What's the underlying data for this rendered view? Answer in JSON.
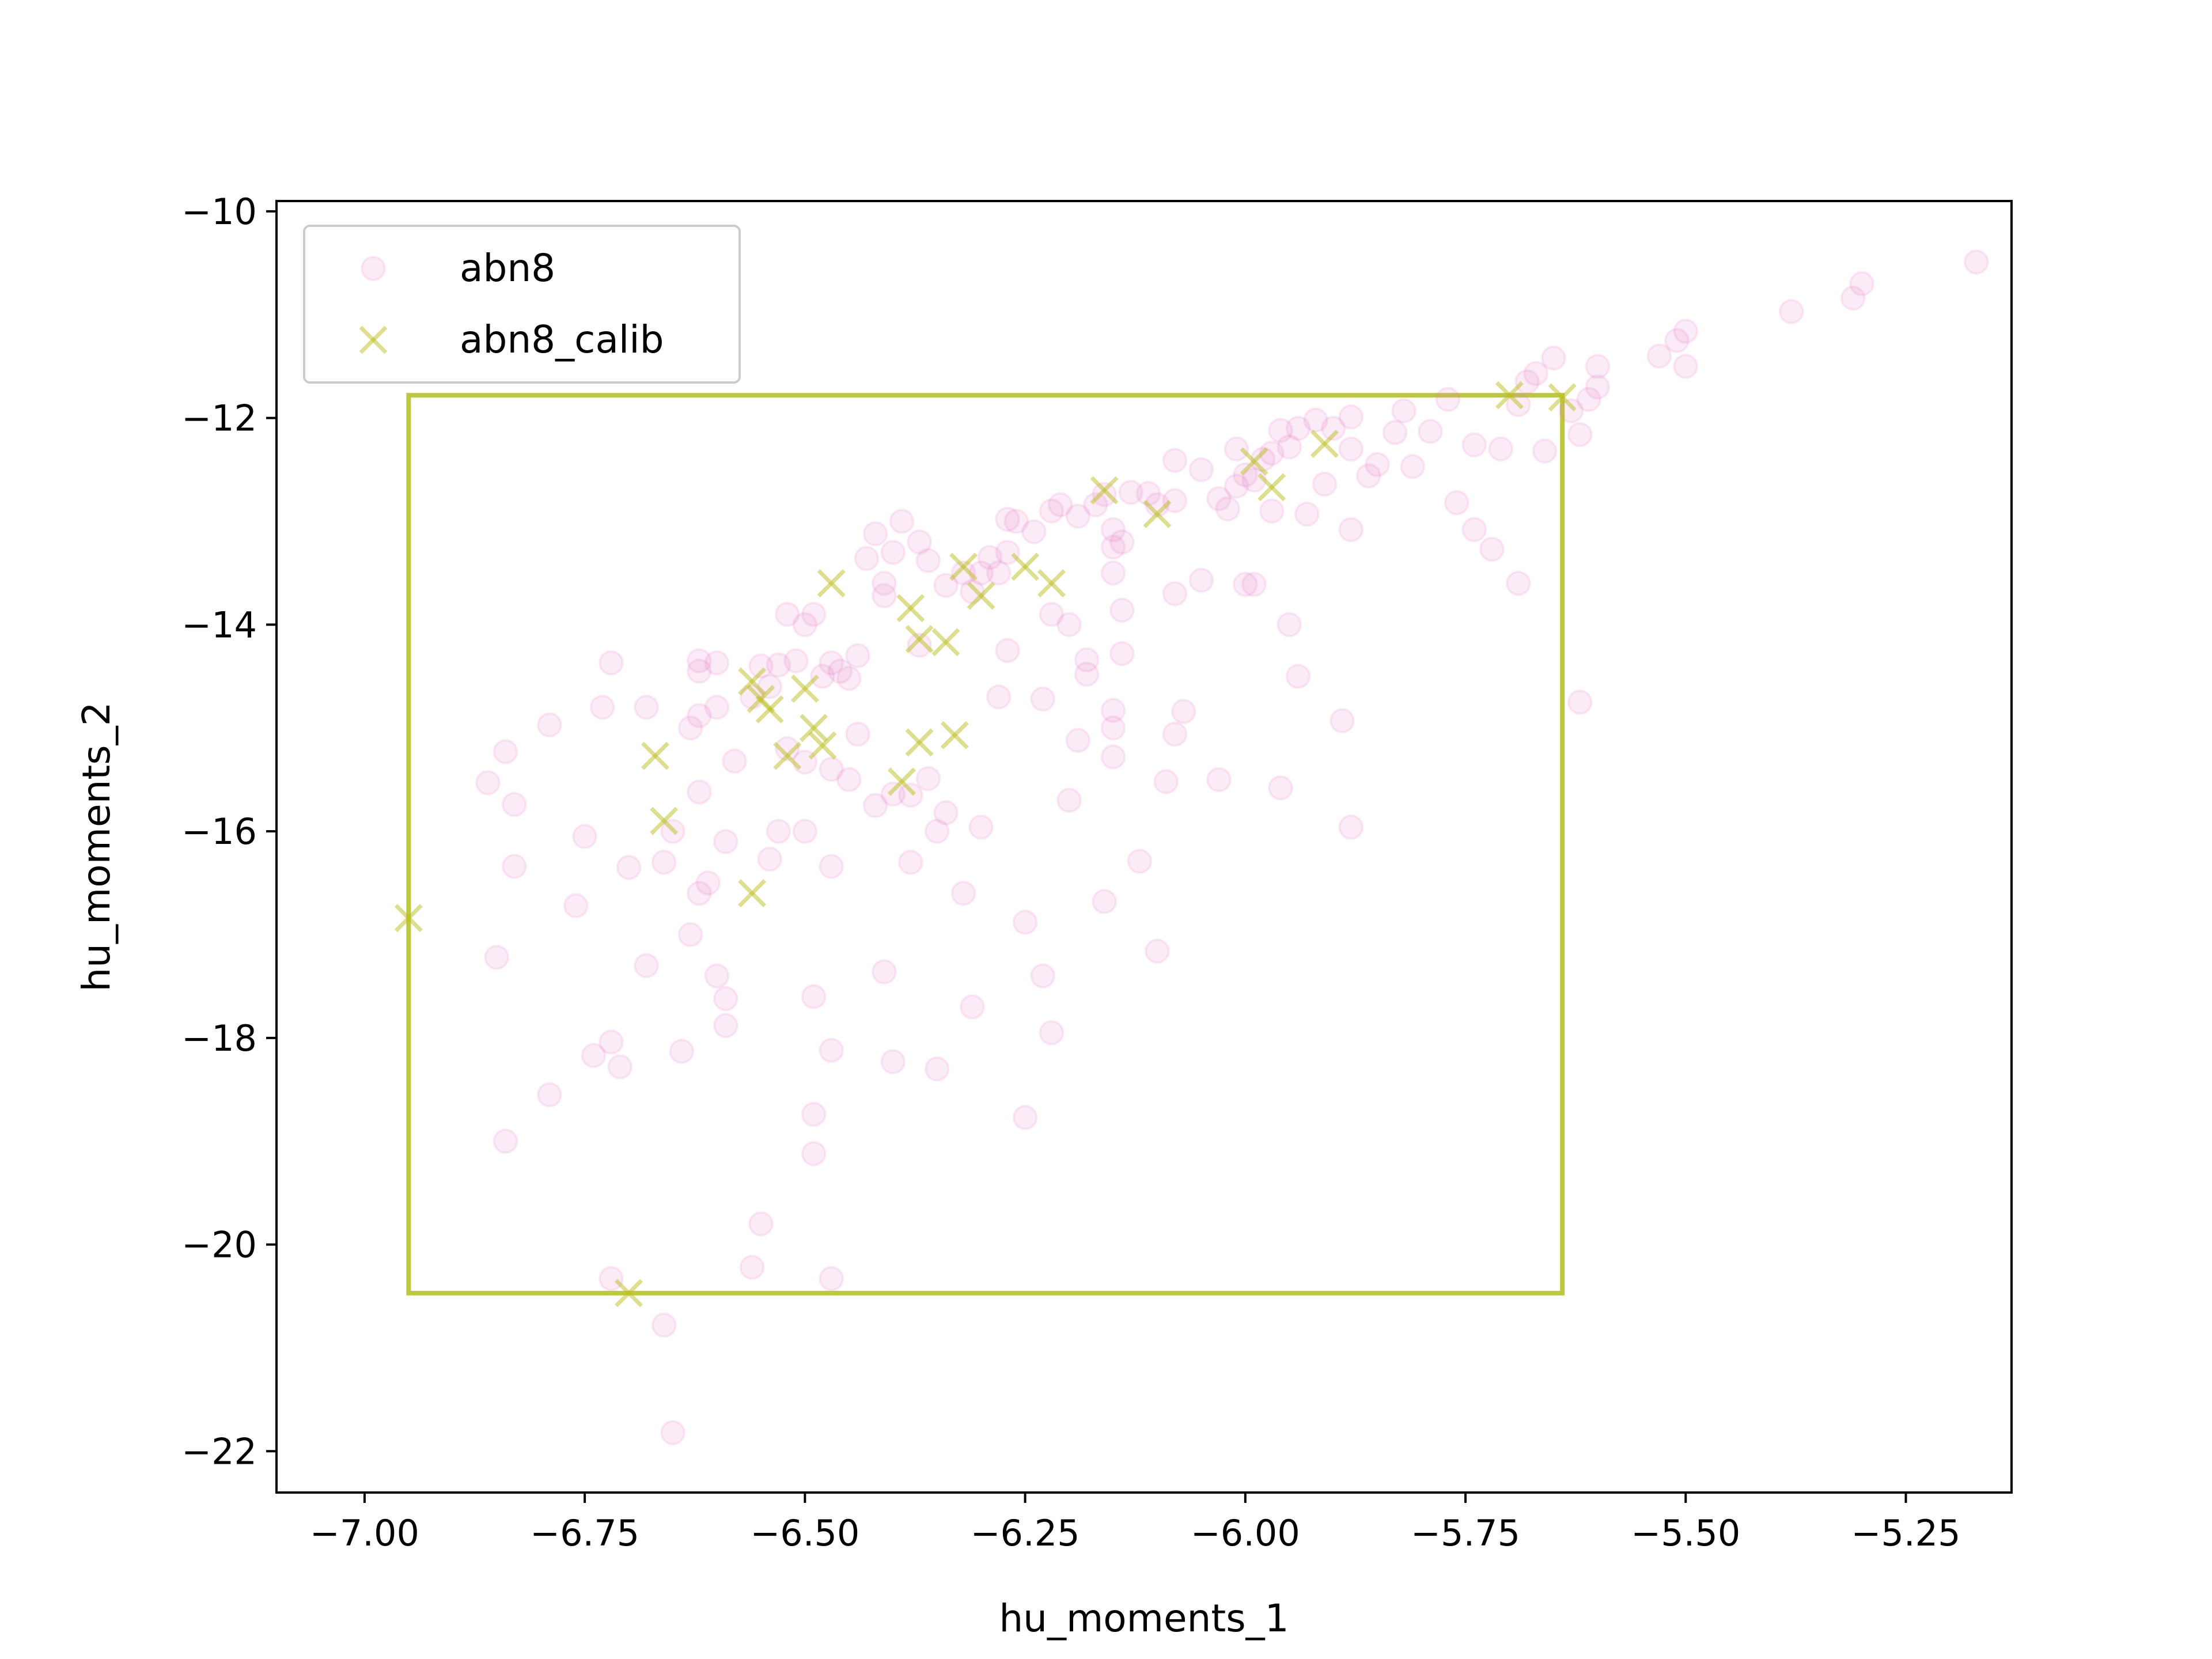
{
  "chart_data": {
    "type": "scatter",
    "xlabel": "hu_moments_1",
    "ylabel": "hu_moments_2",
    "xlim": [
      -7.1,
      -5.13
    ],
    "ylim": [
      -22.4,
      -9.9
    ],
    "x_ticks": [
      -7.0,
      -6.75,
      -6.5,
      -6.25,
      -6.0,
      -5.75,
      -5.5,
      -5.25
    ],
    "y_ticks": [
      -10,
      -12,
      -14,
      -16,
      -18,
      -20,
      -22
    ],
    "grid": false,
    "legend_position": "top-left",
    "calib_box": {
      "x0": -6.95,
      "x1": -5.64,
      "y0": -20.47,
      "y1": -11.78,
      "color": "#bcc840"
    },
    "series": [
      {
        "name": "abn8",
        "marker": "circle",
        "color": "#e377c2",
        "opacity": 0.15,
        "points": [
          [
            -5.17,
            -10.49
          ],
          [
            -5.3,
            -10.7
          ],
          [
            -5.31,
            -10.84
          ],
          [
            -5.38,
            -10.97
          ],
          [
            -5.5,
            -11.16
          ],
          [
            -5.51,
            -11.25
          ],
          [
            -5.53,
            -11.4
          ],
          [
            -5.5,
            -11.5
          ],
          [
            -5.6,
            -11.5
          ],
          [
            -5.6,
            -11.7
          ],
          [
            -5.61,
            -11.82
          ],
          [
            -5.65,
            -11.42
          ],
          [
            -5.67,
            -11.57
          ],
          [
            -5.68,
            -11.65
          ],
          [
            -5.69,
            -11.87
          ],
          [
            -5.63,
            -11.93
          ],
          [
            -5.62,
            -12.16
          ],
          [
            -5.66,
            -12.32
          ],
          [
            -5.71,
            -12.3
          ],
          [
            -5.74,
            -12.26
          ],
          [
            -5.77,
            -11.82
          ],
          [
            -5.79,
            -12.13
          ],
          [
            -5.82,
            -11.93
          ],
          [
            -5.83,
            -12.14
          ],
          [
            -5.85,
            -12.45
          ],
          [
            -5.86,
            -12.56
          ],
          [
            -5.88,
            -11.99
          ],
          [
            -5.88,
            -12.3
          ],
          [
            -5.88,
            -13.08
          ],
          [
            -5.9,
            -12.1
          ],
          [
            -5.92,
            -12.02
          ],
          [
            -5.91,
            -12.64
          ],
          [
            -5.93,
            -12.93
          ],
          [
            -5.94,
            -12.1
          ],
          [
            -5.95,
            -12.28
          ],
          [
            -5.96,
            -12.12
          ],
          [
            -5.97,
            -12.34
          ],
          [
            -5.97,
            -12.9
          ],
          [
            -5.98,
            -12.4
          ],
          [
            -5.99,
            -12.6
          ],
          [
            -6.0,
            -12.55
          ],
          [
            -5.99,
            -13.61
          ],
          [
            -6.0,
            -13.61
          ],
          [
            -6.01,
            -12.3
          ],
          [
            -6.01,
            -12.66
          ],
          [
            -6.02,
            -12.88
          ],
          [
            -6.03,
            -12.78
          ],
          [
            -6.05,
            -12.5
          ],
          [
            -6.05,
            -13.57
          ],
          [
            -6.08,
            -12.41
          ],
          [
            -6.08,
            -12.8
          ],
          [
            -6.08,
            -13.7
          ],
          [
            -6.1,
            -12.84
          ],
          [
            -6.11,
            -12.73
          ],
          [
            -6.13,
            -12.72
          ],
          [
            -6.14,
            -13.2
          ],
          [
            -6.14,
            -13.86
          ],
          [
            -6.15,
            -13.08
          ],
          [
            -6.15,
            -13.25
          ],
          [
            -6.15,
            -13.5
          ],
          [
            -6.16,
            -12.74
          ],
          [
            -6.17,
            -12.84
          ],
          [
            -6.19,
            -12.95
          ],
          [
            -6.21,
            -12.84
          ],
          [
            -6.22,
            -12.9
          ],
          [
            -6.24,
            -13.1
          ],
          [
            -6.26,
            -13.0
          ],
          [
            -6.27,
            -13.3
          ],
          [
            -6.27,
            -12.98
          ],
          [
            -6.28,
            -13.5
          ],
          [
            -6.29,
            -13.35
          ],
          [
            -6.3,
            -13.5
          ],
          [
            -6.31,
            -13.68
          ],
          [
            -6.32,
            -13.5
          ],
          [
            -6.34,
            -13.62
          ],
          [
            -6.36,
            -13.38
          ],
          [
            -6.37,
            -13.2
          ],
          [
            -6.39,
            -13.0
          ],
          [
            -6.4,
            -13.3
          ],
          [
            -6.41,
            -13.6
          ],
          [
            -6.41,
            -13.72
          ],
          [
            -6.42,
            -13.12
          ],
          [
            -6.43,
            -13.36
          ],
          [
            -6.44,
            -14.3
          ],
          [
            -6.45,
            -14.52
          ],
          [
            -6.46,
            -14.45
          ],
          [
            -6.47,
            -14.37
          ],
          [
            -6.48,
            -14.5
          ],
          [
            -6.49,
            -13.9
          ],
          [
            -6.5,
            -14.0
          ],
          [
            -6.51,
            -14.35
          ],
          [
            -6.52,
            -13.9
          ],
          [
            -6.53,
            -14.39
          ],
          [
            -6.54,
            -14.6
          ],
          [
            -6.55,
            -14.4
          ],
          [
            -6.56,
            -14.7
          ],
          [
            -6.6,
            -14.8
          ],
          [
            -6.62,
            -14.35
          ],
          [
            -6.62,
            -14.45
          ],
          [
            -6.62,
            -14.88
          ],
          [
            -6.63,
            -15.0
          ],
          [
            -6.6,
            -14.37
          ],
          [
            -6.68,
            -14.8
          ],
          [
            -6.72,
            -14.37
          ],
          [
            -6.73,
            -14.8
          ],
          [
            -6.79,
            -14.97
          ],
          [
            -6.84,
            -15.23
          ],
          [
            -6.86,
            -15.53
          ],
          [
            -6.83,
            -15.74
          ],
          [
            -6.75,
            -16.05
          ],
          [
            -6.7,
            -16.35
          ],
          [
            -6.66,
            -16.3
          ],
          [
            -6.61,
            -16.5
          ],
          [
            -6.59,
            -16.1
          ],
          [
            -6.54,
            -16.27
          ],
          [
            -6.5,
            -16.0
          ],
          [
            -6.47,
            -16.34
          ],
          [
            -6.42,
            -15.75
          ],
          [
            -6.38,
            -15.65
          ],
          [
            -6.36,
            -15.49
          ],
          [
            -6.34,
            -15.82
          ],
          [
            -6.32,
            -16.6
          ],
          [
            -6.3,
            -15.96
          ],
          [
            -6.25,
            -16.88
          ],
          [
            -6.23,
            -17.4
          ],
          [
            -6.35,
            -16.0
          ],
          [
            -6.45,
            -15.5
          ],
          [
            -6.5,
            -15.33
          ],
          [
            -6.47,
            -15.4
          ],
          [
            -6.44,
            -15.06
          ],
          [
            -6.4,
            -15.64
          ],
          [
            -6.58,
            -15.32
          ],
          [
            -6.62,
            -15.62
          ],
          [
            -6.65,
            -16.0
          ],
          [
            -6.62,
            -16.6
          ],
          [
            -6.63,
            -17.0
          ],
          [
            -6.68,
            -17.3
          ],
          [
            -6.76,
            -16.72
          ],
          [
            -6.83,
            -16.34
          ],
          [
            -6.85,
            -17.22
          ],
          [
            -6.72,
            -18.04
          ],
          [
            -6.71,
            -18.28
          ],
          [
            -6.64,
            -18.13
          ],
          [
            -6.74,
            -18.17
          ],
          [
            -6.79,
            -18.55
          ],
          [
            -6.84,
            -19.0
          ],
          [
            -6.59,
            -17.62
          ],
          [
            -6.59,
            -17.88
          ],
          [
            -6.49,
            -17.6
          ],
          [
            -6.47,
            -18.12
          ],
          [
            -6.49,
            -18.74
          ],
          [
            -6.41,
            -17.36
          ],
          [
            -6.4,
            -18.23
          ],
          [
            -6.35,
            -18.3
          ],
          [
            -6.31,
            -17.7
          ],
          [
            -6.25,
            -18.77
          ],
          [
            -6.22,
            -17.95
          ],
          [
            -6.55,
            -19.8
          ],
          [
            -6.56,
            -20.22
          ],
          [
            -6.47,
            -20.33
          ],
          [
            -6.49,
            -19.12
          ],
          [
            -6.72,
            -20.33
          ],
          [
            -6.66,
            -20.78
          ],
          [
            -6.65,
            -21.82
          ],
          [
            -6.2,
            -15.7
          ],
          [
            -6.19,
            -15.12
          ],
          [
            -6.18,
            -14.48
          ],
          [
            -6.18,
            -14.34
          ],
          [
            -6.15,
            -14.83
          ],
          [
            -6.15,
            -15.28
          ],
          [
            -6.14,
            -14.28
          ],
          [
            -6.12,
            -16.29
          ],
          [
            -6.1,
            -17.16
          ],
          [
            -6.09,
            -15.52
          ],
          [
            -6.07,
            -14.84
          ],
          [
            -6.08,
            -15.06
          ],
          [
            -6.03,
            -15.5
          ],
          [
            -6.16,
            -16.68
          ],
          [
            -6.15,
            -15.0
          ],
          [
            -6.23,
            -14.72
          ],
          [
            -6.28,
            -14.7
          ],
          [
            -6.27,
            -14.25
          ],
          [
            -6.2,
            -14.0
          ],
          [
            -6.22,
            -13.9
          ],
          [
            -6.37,
            -14.2
          ],
          [
            -5.96,
            -15.58
          ],
          [
            -5.95,
            -14.0
          ],
          [
            -5.94,
            -14.5
          ],
          [
            -5.89,
            -14.93
          ],
          [
            -5.88,
            -15.96
          ],
          [
            -5.74,
            -13.08
          ],
          [
            -5.76,
            -12.82
          ],
          [
            -5.72,
            -13.27
          ],
          [
            -5.69,
            -13.6
          ],
          [
            -5.62,
            -14.75
          ],
          [
            -5.81,
            -12.47
          ],
          [
            -6.6,
            -17.4
          ],
          [
            -6.38,
            -16.3
          ],
          [
            -6.53,
            -16.0
          ],
          [
            -6.52,
            -15.2
          ]
        ]
      },
      {
        "name": "abn8_calib",
        "marker": "x",
        "color": "#bcbd22",
        "opacity": 0.5,
        "points": [
          [
            -6.95,
            -16.84
          ],
          [
            -6.7,
            -20.47
          ],
          [
            -6.67,
            -15.27
          ],
          [
            -6.66,
            -15.9
          ],
          [
            -6.56,
            -14.55
          ],
          [
            -6.55,
            -14.72
          ],
          [
            -6.54,
            -14.82
          ],
          [
            -6.52,
            -15.27
          ],
          [
            -6.5,
            -14.62
          ],
          [
            -6.49,
            -15.0
          ],
          [
            -6.48,
            -15.17
          ],
          [
            -6.56,
            -16.6
          ],
          [
            -6.47,
            -13.6
          ],
          [
            -6.39,
            -15.52
          ],
          [
            -6.37,
            -15.14
          ],
          [
            -6.33,
            -15.07
          ],
          [
            -6.38,
            -13.84
          ],
          [
            -6.37,
            -14.14
          ],
          [
            -6.34,
            -14.17
          ],
          [
            -6.32,
            -13.44
          ],
          [
            -6.3,
            -13.72
          ],
          [
            -6.25,
            -13.44
          ],
          [
            -6.22,
            -13.6
          ],
          [
            -6.16,
            -12.7
          ],
          [
            -6.1,
            -12.93
          ],
          [
            -5.99,
            -12.42
          ],
          [
            -5.97,
            -12.67
          ],
          [
            -5.91,
            -12.25
          ],
          [
            -5.7,
            -11.78
          ],
          [
            -5.64,
            -11.8
          ]
        ]
      }
    ]
  }
}
